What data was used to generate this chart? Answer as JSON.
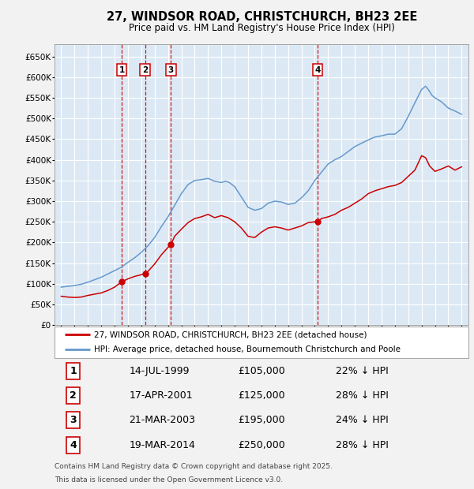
{
  "title": "27, WINDSOR ROAD, CHRISTCHURCH, BH23 2EE",
  "subtitle": "Price paid vs. HM Land Registry's House Price Index (HPI)",
  "background_color": "#f2f2f2",
  "plot_bg_color": "#dce9f5",
  "grid_color": "#ffffff",
  "transactions": [
    {
      "id": 1,
      "date": "14-JUL-1999",
      "price": 105000,
      "pct": "22% ↓ HPI",
      "x_year": 1999.54
    },
    {
      "id": 2,
      "date": "17-APR-2001",
      "price": 125000,
      "pct": "28% ↓ HPI",
      "x_year": 2001.29
    },
    {
      "id": 3,
      "date": "21-MAR-2003",
      "price": 195000,
      "pct": "24% ↓ HPI",
      "x_year": 2003.22
    },
    {
      "id": 4,
      "date": "19-MAR-2014",
      "price": 250000,
      "pct": "28% ↓ HPI",
      "x_year": 2014.22
    }
  ],
  "red_line_color": "#cc0000",
  "blue_line_color": "#6699cc",
  "ylim": [
    0,
    680000
  ],
  "yticks": [
    0,
    50000,
    100000,
    150000,
    200000,
    250000,
    300000,
    350000,
    400000,
    450000,
    500000,
    550000,
    600000,
    650000
  ],
  "xlim": [
    1994.5,
    2025.5
  ],
  "legend_label_red": "27, WINDSOR ROAD, CHRISTCHURCH, BH23 2EE (detached house)",
  "legend_label_blue": "HPI: Average price, detached house, Bournemouth Christchurch and Poole",
  "footer1": "Contains HM Land Registry data © Crown copyright and database right 2025.",
  "footer2": "This data is licensed under the Open Government Licence v3.0.",
  "red_x": [
    1995.0,
    1995.5,
    1996.0,
    1996.5,
    1997.0,
    1997.5,
    1998.0,
    1998.5,
    1999.0,
    1999.54,
    2000.0,
    2000.5,
    2001.0,
    2001.29,
    2001.5,
    2002.0,
    2002.5,
    2003.0,
    2003.22,
    2003.5,
    2004.0,
    2004.5,
    2005.0,
    2005.5,
    2006.0,
    2006.5,
    2007.0,
    2007.5,
    2008.0,
    2008.5,
    2009.0,
    2009.5,
    2010.0,
    2010.5,
    2011.0,
    2011.5,
    2012.0,
    2012.5,
    2013.0,
    2013.5,
    2014.0,
    2014.22,
    2014.5,
    2015.0,
    2015.5,
    2016.0,
    2016.5,
    2017.0,
    2017.5,
    2018.0,
    2018.5,
    2019.0,
    2019.5,
    2020.0,
    2020.5,
    2021.0,
    2021.5,
    2022.0,
    2022.3,
    2022.6,
    2023.0,
    2023.5,
    2024.0,
    2024.5,
    2025.0
  ],
  "red_y": [
    70000,
    68000,
    67000,
    68000,
    72000,
    75000,
    78000,
    84000,
    92000,
    105000,
    112000,
    118000,
    122000,
    125000,
    130000,
    148000,
    170000,
    188000,
    195000,
    215000,
    232000,
    248000,
    258000,
    262000,
    268000,
    260000,
    265000,
    260000,
    250000,
    235000,
    215000,
    212000,
    225000,
    235000,
    238000,
    235000,
    230000,
    235000,
    240000,
    248000,
    250000,
    250000,
    258000,
    262000,
    268000,
    278000,
    285000,
    295000,
    305000,
    318000,
    325000,
    330000,
    335000,
    338000,
    345000,
    360000,
    375000,
    410000,
    405000,
    385000,
    372000,
    378000,
    385000,
    375000,
    383000
  ],
  "blue_x": [
    1995.0,
    1995.5,
    1996.0,
    1996.5,
    1997.0,
    1997.5,
    1998.0,
    1998.5,
    1999.0,
    1999.5,
    2000.0,
    2000.5,
    2001.0,
    2001.5,
    2002.0,
    2002.5,
    2003.0,
    2003.5,
    2004.0,
    2004.5,
    2005.0,
    2005.5,
    2006.0,
    2006.5,
    2007.0,
    2007.3,
    2007.6,
    2008.0,
    2008.5,
    2009.0,
    2009.5,
    2010.0,
    2010.5,
    2011.0,
    2011.5,
    2012.0,
    2012.5,
    2013.0,
    2013.5,
    2014.0,
    2014.5,
    2015.0,
    2015.5,
    2016.0,
    2016.5,
    2017.0,
    2017.5,
    2018.0,
    2018.5,
    2019.0,
    2019.5,
    2020.0,
    2020.5,
    2021.0,
    2021.5,
    2022.0,
    2022.3,
    2022.5,
    2022.8,
    2023.0,
    2023.5,
    2024.0,
    2024.5,
    2025.0
  ],
  "blue_y": [
    92000,
    94000,
    96000,
    99000,
    104000,
    110000,
    116000,
    124000,
    132000,
    140000,
    152000,
    163000,
    176000,
    192000,
    212000,
    238000,
    262000,
    290000,
    318000,
    340000,
    350000,
    352000,
    355000,
    348000,
    345000,
    348000,
    345000,
    335000,
    310000,
    285000,
    278000,
    282000,
    295000,
    300000,
    298000,
    292000,
    295000,
    308000,
    325000,
    350000,
    370000,
    390000,
    400000,
    408000,
    420000,
    432000,
    440000,
    448000,
    455000,
    458000,
    462000,
    462000,
    475000,
    505000,
    538000,
    570000,
    578000,
    570000,
    555000,
    550000,
    540000,
    525000,
    518000,
    510000
  ]
}
